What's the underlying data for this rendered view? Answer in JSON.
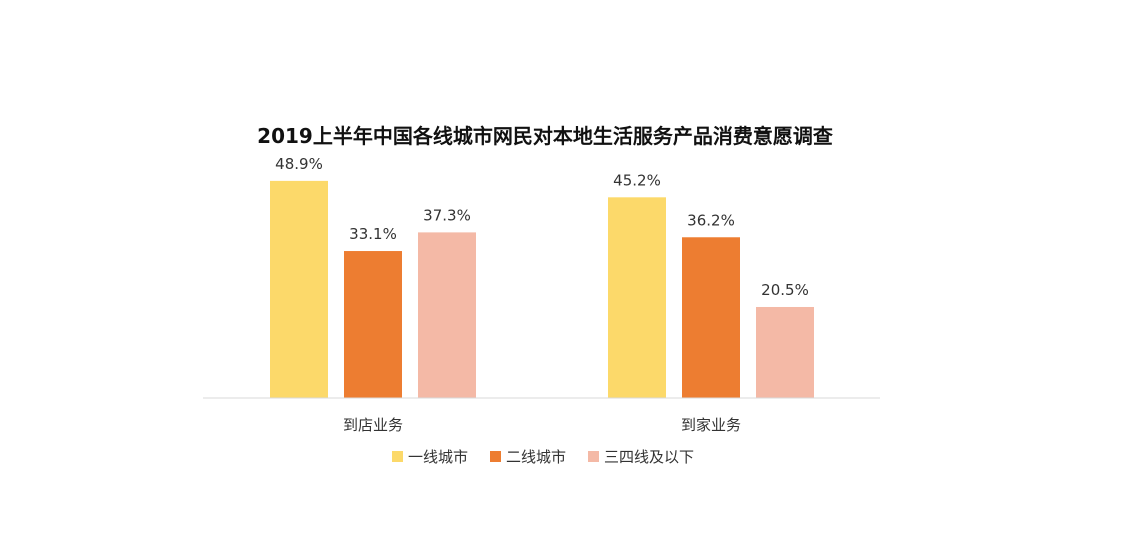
{
  "chart_data": {
    "type": "bar",
    "title": "2019上半年中国各线城市网民对本地生活服务产品消费意愿调查",
    "categories": [
      "到店业务",
      "到家业务"
    ],
    "series": [
      {
        "name": "一线城市",
        "values": [
          48.9,
          45.2
        ],
        "color": "#FCD96A"
      },
      {
        "name": "二线城市",
        "values": [
          33.1,
          36.2
        ],
        "color": "#ED7D31"
      },
      {
        "name": "三四线及以下",
        "values": [
          37.3,
          20.5
        ],
        "color": "#F4B9A6"
      }
    ],
    "value_suffix": "%",
    "ylim": [
      0,
      50
    ],
    "grid": false,
    "legend_position": "bottom",
    "axis_color": "#d9d9d9"
  }
}
